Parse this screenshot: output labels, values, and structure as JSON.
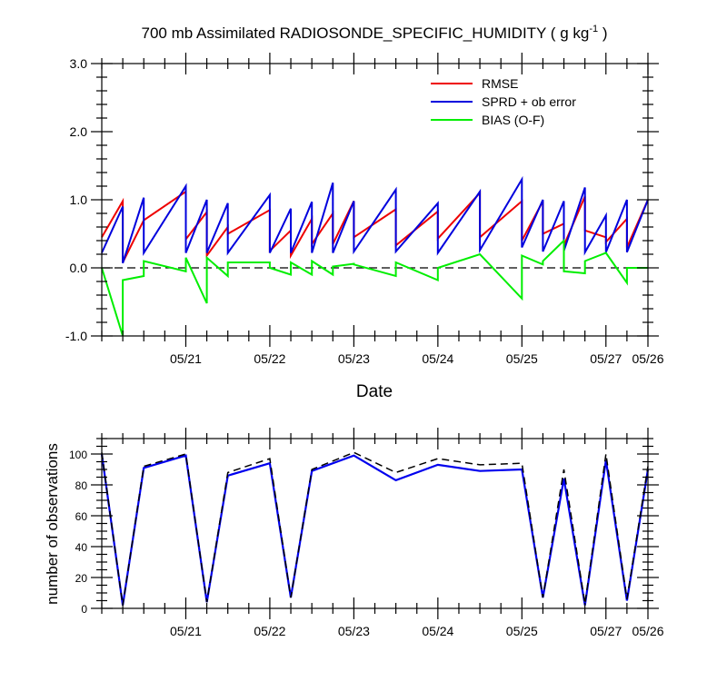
{
  "chart_data": [
    {
      "type": "line",
      "title": "700 mb Assimilated RADIOSONDE_SPECIFIC_HUMIDITY ( g kg",
      "title_exp": "-1",
      "title_tail": " )",
      "xlabel": "Date",
      "ylabel": "",
      "x_tick_labels": [
        "05/21",
        "05/22",
        "05/23",
        "05/24",
        "05/25",
        "05/27",
        "05/26"
      ],
      "x_tick_values": [
        1.0,
        2.0,
        3.0,
        4.0,
        5.0,
        6.0,
        6.5
      ],
      "y_tick_labels": [
        "3.0",
        "2.0",
        "1.0",
        "0.0",
        "-1.0"
      ],
      "y_tick_values": [
        3.0,
        2.0,
        1.0,
        0.0,
        -1.0
      ],
      "xlim": [
        0.0,
        6.5
      ],
      "ylim": [
        -1.0,
        3.0
      ],
      "legend": [
        "RMSE",
        "SPRD + ob error",
        "BIAS (O-F)"
      ],
      "legend_position": "top-right",
      "colors": {
        "rmse": "#ee0000",
        "sprd": "#0000dd",
        "bias": "#00ee00",
        "zero": "#000000"
      },
      "series": [
        {
          "name": "RMSE",
          "x": [
            0.0,
            0.25,
            0.25,
            0.5,
            0.5,
            1.0,
            1.0,
            1.25,
            1.25,
            1.5,
            1.5,
            2.0,
            2.0,
            2.25,
            2.25,
            2.5,
            2.5,
            2.75,
            2.75,
            3.0,
            3.0,
            3.5,
            3.5,
            4.0,
            4.0,
            4.5,
            4.5,
            5.0,
            5.0,
            5.25,
            5.25,
            5.5,
            5.5,
            5.75,
            5.75,
            6.0,
            6.0,
            6.25,
            6.25,
            6.5
          ],
          "y": [
            0.45,
            0.98,
            0.08,
            0.7,
            0.7,
            1.12,
            0.42,
            0.82,
            0.18,
            0.6,
            0.5,
            0.85,
            0.25,
            0.55,
            0.18,
            0.72,
            0.35,
            0.8,
            0.35,
            0.98,
            0.45,
            0.86,
            0.33,
            0.83,
            0.43,
            1.1,
            0.45,
            0.98,
            0.4,
            0.98,
            0.5,
            0.65,
            0.33,
            1.05,
            0.55,
            0.45,
            0.38,
            0.72,
            0.3,
            1.0
          ]
        },
        {
          "name": "SPRD + ob error",
          "x": [
            0.0,
            0.25,
            0.25,
            0.5,
            0.5,
            1.0,
            1.0,
            1.25,
            1.25,
            1.5,
            1.5,
            2.0,
            2.0,
            2.25,
            2.25,
            2.5,
            2.5,
            2.75,
            2.75,
            3.0,
            3.0,
            3.5,
            3.5,
            4.0,
            4.0,
            4.5,
            4.5,
            5.0,
            5.0,
            5.25,
            5.25,
            5.5,
            5.5,
            5.75,
            5.75,
            6.0,
            6.0,
            6.25,
            6.25,
            6.5
          ],
          "y": [
            0.22,
            0.9,
            0.07,
            1.03,
            0.22,
            1.2,
            0.22,
            1.0,
            0.22,
            0.95,
            0.22,
            1.07,
            0.22,
            0.87,
            0.22,
            0.97,
            0.22,
            1.25,
            0.22,
            0.98,
            0.24,
            1.15,
            0.24,
            0.95,
            0.22,
            1.12,
            0.26,
            1.3,
            0.3,
            1.0,
            0.24,
            0.98,
            0.25,
            1.18,
            0.23,
            0.77,
            0.23,
            1.0,
            0.23,
            1.0
          ]
        },
        {
          "name": "BIAS (O-F)",
          "x": [
            0.0,
            0.25,
            0.25,
            0.5,
            0.5,
            1.0,
            1.0,
            1.25,
            1.25,
            1.5,
            1.5,
            2.0,
            2.0,
            2.25,
            2.25,
            2.5,
            2.5,
            2.75,
            2.75,
            3.0,
            3.0,
            3.5,
            3.5,
            4.0,
            4.0,
            4.5,
            4.5,
            5.0,
            5.0,
            5.25,
            5.25,
            5.5,
            5.5,
            5.75,
            5.75,
            6.0,
            6.0,
            6.25,
            6.25,
            6.5
          ],
          "y": [
            0.0,
            -1.0,
            -0.18,
            -0.12,
            0.1,
            -0.05,
            0.15,
            -0.52,
            0.15,
            -0.12,
            0.08,
            0.08,
            0.0,
            -0.1,
            0.08,
            -0.1,
            0.1,
            -0.1,
            0.02,
            0.06,
            0.05,
            -0.12,
            0.08,
            -0.18,
            0.0,
            0.2,
            0.2,
            -0.45,
            0.18,
            0.05,
            0.1,
            0.4,
            -0.05,
            -0.08,
            0.1,
            0.22,
            0.22,
            -0.22,
            0.0,
            0.0
          ]
        }
      ]
    },
    {
      "type": "line",
      "title": "",
      "xlabel": "",
      "ylabel": "number of observations",
      "x_tick_labels": [
        "05/21",
        "05/22",
        "05/23",
        "05/24",
        "05/25",
        "05/27",
        "05/26"
      ],
      "x_tick_values": [
        1.0,
        2.0,
        3.0,
        4.0,
        5.0,
        6.0,
        6.5
      ],
      "y_tick_labels": [
        "100",
        "80",
        "60",
        "40",
        "20",
        "0"
      ],
      "y_tick_values": [
        100,
        80,
        60,
        40,
        20,
        0
      ],
      "xlim": [
        0.0,
        6.5
      ],
      "ylim": [
        0,
        110
      ],
      "colors": {
        "used": "#0000ee",
        "possible": "#000000"
      },
      "series": [
        {
          "name": "possible (dashed)",
          "x": [
            0.0,
            0.25,
            0.5,
            1.0,
            1.25,
            1.5,
            2.0,
            2.25,
            2.5,
            3.0,
            3.5,
            4.0,
            4.5,
            5.0,
            5.25,
            5.5,
            5.75,
            6.0,
            6.25,
            6.5
          ],
          "y": [
            101,
            2,
            92,
            100,
            4,
            88,
            97,
            7,
            90,
            101,
            88,
            97,
            93,
            94,
            7,
            90,
            3,
            100,
            6,
            92
          ]
        },
        {
          "name": "used (blue)",
          "x": [
            0.0,
            0.25,
            0.5,
            1.0,
            1.25,
            1.5,
            2.0,
            2.25,
            2.5,
            3.0,
            3.5,
            4.0,
            4.5,
            5.0,
            5.25,
            5.5,
            5.75,
            6.0,
            6.25,
            6.5
          ],
          "y": [
            100,
            2,
            91,
            99,
            4,
            86,
            94,
            7,
            89,
            99,
            83,
            93,
            89,
            90,
            7,
            84,
            2,
            96,
            5,
            90
          ]
        }
      ]
    }
  ]
}
